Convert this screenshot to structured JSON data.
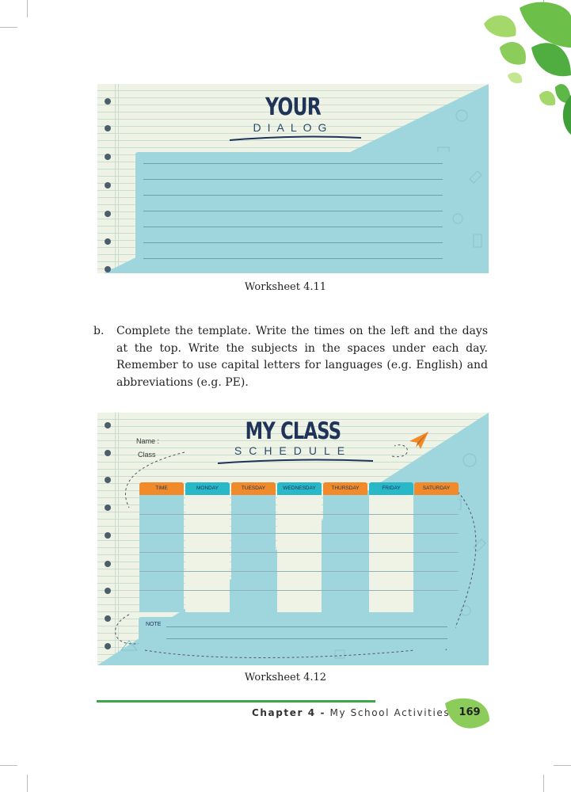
{
  "worksheet_1": {
    "title_main": "YOUR",
    "title_sub": "DIALOG",
    "caption": "Worksheet 4.11"
  },
  "instruction": {
    "label": "b.",
    "text": "Complete the template. Write the times on the left and the days at the top. Write the subjects in the spaces under each day. Remember to use capital letters for languages (e.g. English) and abbreviations (e.g. PE)."
  },
  "worksheet_2": {
    "title_main": "MY CLASS",
    "title_sub": "SCHEDULE",
    "name_label": "Name :",
    "class_label": "Class",
    "columns": [
      "TIME",
      "MONDAY",
      "TUESDAY",
      "WEDNESDAY",
      "THURSDAY",
      "FRIDAY",
      "SATURDAY"
    ],
    "note_label": "NOTE",
    "caption": "Worksheet 4.12"
  },
  "footer": {
    "chapter": "Chapter 4 -",
    "chapter_title": "My School Activities",
    "page_number": "169"
  },
  "colors": {
    "teal": "#9fd6de",
    "cream": "#eef3e6",
    "orange": "#f08a2a",
    "cyan_head": "#28b8c8",
    "green": "#3aa84a",
    "navy": "#1f3458"
  }
}
